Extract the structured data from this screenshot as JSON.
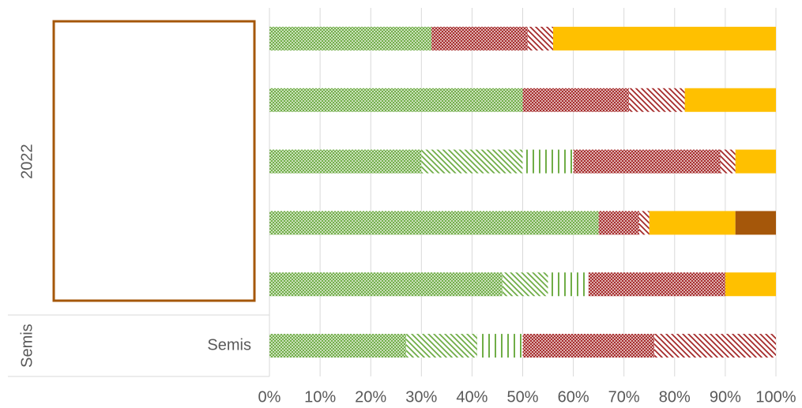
{
  "chart_data": {
    "type": "stacked-bar-horizontal",
    "categories": [
      null,
      null,
      null,
      null,
      null,
      "Semis"
    ],
    "groups": [
      "2022",
      "Semis"
    ],
    "series": [
      {
        "color": "#70ad47",
        "pattern": "dense",
        "values": [
          32,
          50,
          30,
          65,
          46,
          27
        ]
      },
      {
        "color": "#70ad47",
        "pattern": "diagonal",
        "values": [
          0,
          0,
          20,
          0,
          9,
          14
        ]
      },
      {
        "color": "#70ad47",
        "pattern": "vertical",
        "values": [
          0,
          0,
          10,
          0,
          8,
          9
        ]
      },
      {
        "color": "#a52a2a",
        "pattern": "dense",
        "values": [
          19,
          21,
          29,
          8,
          27,
          26
        ]
      },
      {
        "color": "#a52a2a",
        "pattern": "diagonal",
        "values": [
          5,
          11,
          3,
          2,
          0,
          24
        ]
      },
      {
        "color": "#ffc000",
        "pattern": "solid",
        "values": [
          44,
          18,
          8,
          17,
          10,
          0
        ]
      },
      {
        "color": "#a5570a",
        "pattern": "solid",
        "values": [
          0,
          0,
          0,
          8,
          0,
          0
        ]
      }
    ],
    "xlim": [
      0,
      100
    ],
    "xticks": [
      {
        "value": 0,
        "label": "0%"
      },
      {
        "value": 10,
        "label": "10%"
      },
      {
        "value": 20,
        "label": "20%"
      },
      {
        "value": 30,
        "label": "30%"
      },
      {
        "value": 40,
        "label": "40%"
      },
      {
        "value": 50,
        "label": "50%"
      },
      {
        "value": 60,
        "label": "60%"
      },
      {
        "value": 70,
        "label": "70%"
      },
      {
        "value": 80,
        "label": "80%"
      },
      {
        "value": 90,
        "label": "90%"
      },
      {
        "value": 100,
        "label": "100%"
      }
    ],
    "grid": true
  }
}
